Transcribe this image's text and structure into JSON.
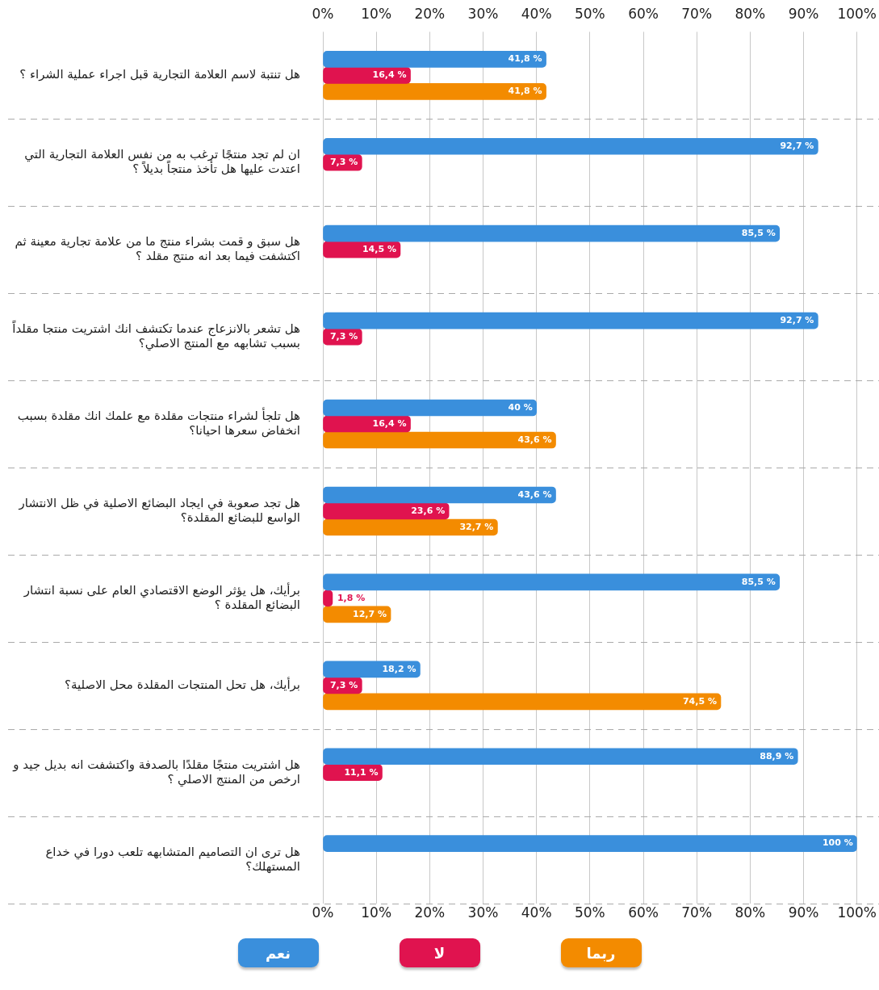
{
  "chart_data": {
    "type": "bar",
    "orientation": "horizontal",
    "categories": [
      "هل تنتبة لاسم العلامة التجارية قبل اجراء عملية الشراء ؟",
      "ان لم تجد منتجًا ترغب به من نفس العلامة التجارية التي اعتدت عليها هل تأخذ منتجاً بديلاً ؟",
      "هل سبق و قمت بشراء منتج ما من علامة تجارية معينة ثم اكتشفت فيما بعد انه منتج مقلد ؟",
      "هل تشعر بالانزعاج عندما تكتشف انك اشتريت منتجا مقلداً بسبب تشابهه مع المنتج الاصلي؟",
      "هل تلجأ لشراء منتجات مقلدة مع علمك انك مقلدة بسبب انخفاض سعرها احيانا؟",
      "هل تجد صعوبة في ايجاد البضائع الاصلية في ظل الانتشار الواسع للبضائع المقلدة؟",
      "برأيك، هل يؤثر الوضع الاقتصادي العام على نسبة انتشار البضائع المقلدة ؟",
      "برأيك، هل تحل المنتجات المقلدة محل الاصلية؟",
      "هل اشتريت منتجًا مقلدًا بالصدفة واكتشفت انه بديل جيد و ارخص من المنتج الاصلي ؟",
      "هل ترى ان التصاميم المتشابهه تلعب دورا في خداع المستهلك؟"
    ],
    "series": [
      {
        "name": "نعم",
        "color": "#3a8fdc",
        "values": [
          41.8,
          92.7,
          85.5,
          92.7,
          40,
          43.6,
          85.5,
          18.2,
          88.9,
          100
        ],
        "value_labels": [
          "41,8 %",
          "92,7 %",
          "85,5 %",
          "92,7 %",
          "40 %",
          "43,6 %",
          "85,5 %",
          "18,2 %",
          "88,9 %",
          "100 %"
        ]
      },
      {
        "name": "لا",
        "color": "#e0134f",
        "values": [
          16.4,
          7.3,
          14.5,
          7.3,
          16.4,
          23.6,
          1.8,
          7.3,
          11.1,
          null
        ],
        "value_labels": [
          "16,4 %",
          "7,3 %",
          "14,5 %",
          "7,3 %",
          "16,4 %",
          "23,6 %",
          "1,8 %",
          "7,3 %",
          "11,1 %",
          null
        ]
      },
      {
        "name": "ربما",
        "color": "#f38b00",
        "values": [
          41.8,
          null,
          null,
          null,
          43.6,
          32.7,
          12.7,
          74.5,
          null,
          null
        ],
        "value_labels": [
          "41,8 %",
          null,
          null,
          null,
          "43,6 %",
          "32,7 %",
          "12,7 %",
          "74,5 %",
          null,
          null
        ]
      }
    ],
    "xlim": [
      0,
      100
    ],
    "xticks": [
      {
        "value": 0,
        "label": "0%"
      },
      {
        "value": 10,
        "label": "10%"
      },
      {
        "value": 20,
        "label": "20%"
      },
      {
        "value": 30,
        "label": "30%"
      },
      {
        "value": 40,
        "label": "40%"
      },
      {
        "value": 50,
        "label": "50%"
      },
      {
        "value": 60,
        "label": "60%"
      },
      {
        "value": 70,
        "label": "70%"
      },
      {
        "value": 80,
        "label": "80%"
      },
      {
        "value": 90,
        "label": "90%"
      },
      {
        "value": 100,
        "label": "100%"
      }
    ],
    "x2lim": [
      0,
      100
    ],
    "x2ticks": [
      {
        "value": 0,
        "label": "0%"
      },
      {
        "value": 10,
        "label": "10%"
      },
      {
        "value": 20,
        "label": "20%"
      },
      {
        "value": 30,
        "label": "30%"
      },
      {
        "value": 40,
        "label": "40%"
      },
      {
        "value": 50,
        "label": "50%"
      },
      {
        "value": 60,
        "label": "60%"
      },
      {
        "value": 70,
        "label": "70%"
      },
      {
        "value": 80,
        "label": "80%"
      },
      {
        "value": 90,
        "label": "90%"
      },
      {
        "value": 100,
        "label": "100%"
      }
    ],
    "grid": true,
    "legend": "bottom"
  }
}
